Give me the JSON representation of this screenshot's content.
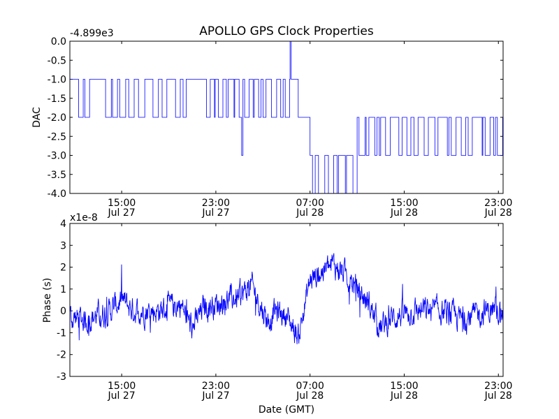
{
  "figure": {
    "title": "APOLLO GPS Clock Properties",
    "series_color": "#0000ff"
  },
  "chart_data": [
    {
      "type": "line",
      "title": "APOLLO GPS Clock Properties",
      "xlabel": "",
      "ylabel": "DAC",
      "y_offset_label": "-4.899e3",
      "ylim": [
        -4.0,
        0.0
      ],
      "yticks": [
        0.0,
        -0.5,
        -1.0,
        -1.5,
        -2.0,
        -2.5,
        -3.0,
        -3.5,
        -4.0
      ],
      "ytick_labels": [
        "0.0",
        "-0.5",
        "-1.0",
        "-1.5",
        "-2.0",
        "-2.5",
        "-3.0",
        "-3.5",
        "-4.0"
      ],
      "xlim_hours": [
        10.5,
        23.6
      ],
      "xticks": [
        15,
        23,
        31,
        39,
        47
      ],
      "xtick_labels": [
        {
          "time": "15:00",
          "date": "Jul 27"
        },
        {
          "time": "23:00",
          "date": "Jul 27"
        },
        {
          "time": "07:00",
          "date": "Jul 28"
        },
        {
          "time": "15:00",
          "date": "Jul 28"
        },
        {
          "time": "23:00",
          "date": "Jul 28"
        }
      ],
      "xlim": [
        10.6,
        47.4
      ],
      "step_segments": [
        {
          "x0": 10.6,
          "x1": 25.0,
          "levels": [
            -1,
            -2
          ],
          "note": "frequent toggling between -1 and -2"
        },
        {
          "x0": 25.0,
          "x1": 25.3,
          "levels": [
            -2,
            -3
          ]
        },
        {
          "x0": 25.3,
          "x1": 29.3,
          "levels": [
            -1,
            -2
          ]
        },
        {
          "x0": 29.3,
          "x1": 29.4,
          "levels": [
            0,
            -1
          ]
        },
        {
          "x0": 29.4,
          "x1": 30.0,
          "levels": [
            -1
          ]
        },
        {
          "x0": 30.0,
          "x1": 31.0,
          "levels": [
            -2,
            -3
          ]
        },
        {
          "x0": 31.0,
          "x1": 35.0,
          "levels": [
            -3,
            -4
          ]
        },
        {
          "x0": 35.0,
          "x1": 37.0,
          "levels": [
            -2,
            -3
          ]
        },
        {
          "x0": 37.0,
          "x1": 47.4,
          "levels": [
            -2,
            -3
          ],
          "note": "frequent toggling between -2 and -3"
        }
      ]
    },
    {
      "type": "line",
      "title": "",
      "xlabel": "Date (GMT)",
      "ylabel": "Phase (s)",
      "y_offset_label": "x1e-8",
      "ylim": [
        -3,
        4
      ],
      "yticks": [
        4,
        3,
        2,
        1,
        0,
        -1,
        -2,
        -3
      ],
      "ytick_labels": [
        "4",
        "3",
        "2",
        "1",
        "0",
        "-1",
        "-2",
        "-3"
      ],
      "xtick_labels": [
        {
          "time": "15:00",
          "date": "Jul 27"
        },
        {
          "time": "23:00",
          "date": "Jul 27"
        },
        {
          "time": "07:00",
          "date": "Jul 28"
        },
        {
          "time": "15:00",
          "date": "Jul 28"
        },
        {
          "time": "23:00",
          "date": "Jul 28"
        }
      ],
      "xticks": [
        15,
        23,
        31,
        39,
        47
      ],
      "xlim": [
        10.6,
        47.4
      ],
      "trend_x": [
        10.6,
        12,
        14,
        15,
        16,
        18,
        20,
        21,
        22,
        23,
        24,
        25,
        26,
        27,
        27.5,
        28,
        29,
        30,
        31,
        32,
        33,
        34,
        35,
        36,
        37,
        38,
        40,
        42,
        44,
        46,
        47.4
      ],
      "trend_y": [
        -0.3,
        -0.4,
        0.0,
        0.5,
        0.0,
        0.0,
        0.3,
        -0.8,
        0.2,
        0.3,
        0.5,
        0.6,
        1.2,
        0.0,
        -0.5,
        0.0,
        -0.2,
        -1.2,
        1.4,
        1.8,
        2.1,
        1.7,
        1.0,
        0.3,
        -0.8,
        -0.3,
        0.0,
        0.0,
        -0.4,
        0.0,
        0.0
      ],
      "noise_amplitude": 0.55
    }
  ]
}
